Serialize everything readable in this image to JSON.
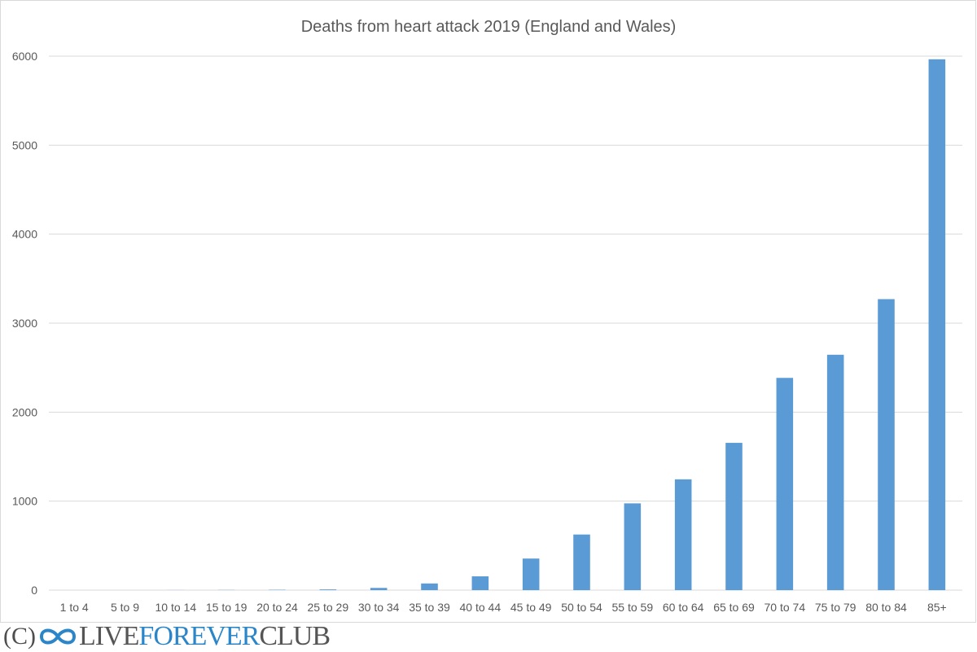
{
  "chart_data": {
    "type": "bar",
    "title": "Deaths from heart attack 2019 (England and Wales)",
    "xlabel": "",
    "ylabel": "",
    "categories": [
      "1 to 4",
      "5 to 9",
      "10 to 14",
      "15 to 19",
      "20 to 24",
      "25 to 29",
      "30 to 34",
      "35 to 39",
      "40 to 44",
      "45 to 49",
      "50 to 54",
      "55 to 59",
      "60 to 64",
      "65 to 69",
      "70 to 74",
      "75 to 79",
      "80 to 84",
      "85+"
    ],
    "values": [
      0,
      0,
      1,
      2,
      4,
      8,
      25,
      75,
      155,
      355,
      625,
      975,
      1245,
      1655,
      2385,
      2645,
      3270,
      5965
    ],
    "ylim": [
      0,
      6000
    ],
    "yticks": [
      "0",
      "1000",
      "2000",
      "3000",
      "4000",
      "5000",
      "6000"
    ],
    "grid": true,
    "legend": "none",
    "bar_color": "#5b9bd5",
    "grid_color": "#d9d9d9"
  },
  "watermark": {
    "prefix": "(C)",
    "icon": "infinity-icon",
    "word1": "LIVE",
    "word2": "FOREVER",
    "word3": "CLUB",
    "brand_color": "#2a86c9"
  }
}
